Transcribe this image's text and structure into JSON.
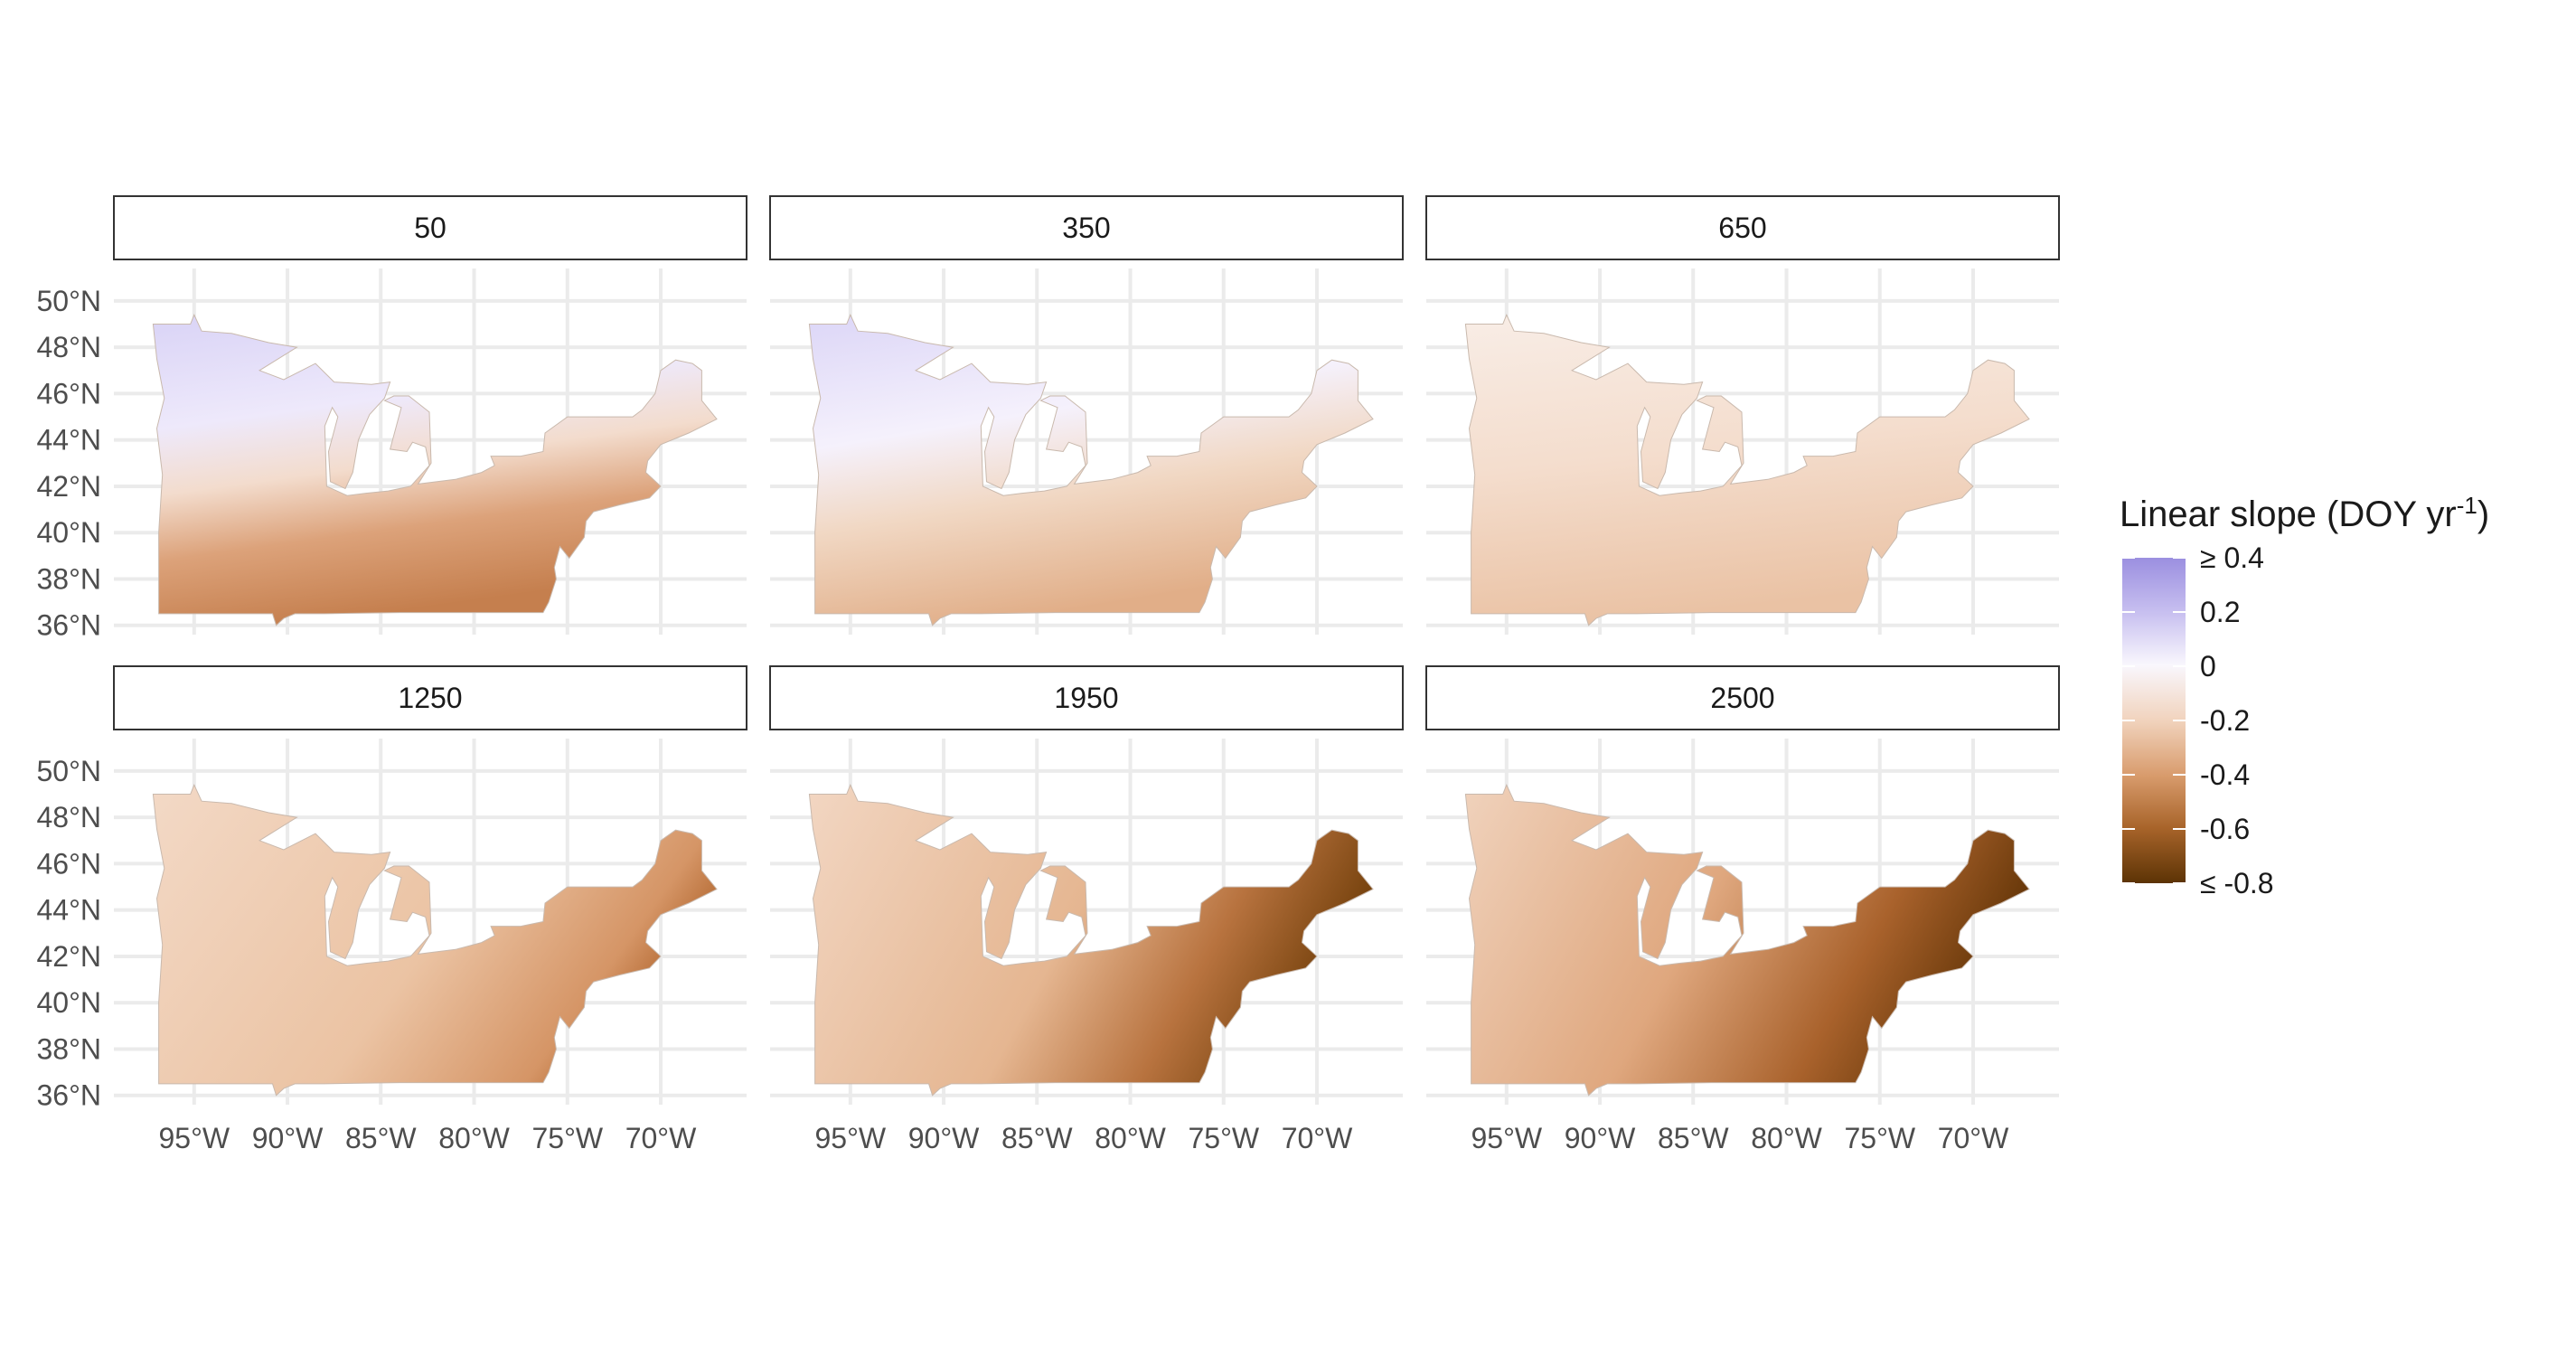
{
  "chart_data": {
    "type": "heatmap",
    "facets": [
      {
        "label": "50",
        "pattern": "d50"
      },
      {
        "label": "350",
        "pattern": "d350"
      },
      {
        "label": "650",
        "pattern": "d650"
      },
      {
        "label": "1250",
        "pattern": "d1250"
      },
      {
        "label": "1950",
        "pattern": "d1950"
      },
      {
        "label": "2500",
        "pattern": "d2500"
      }
    ],
    "x_ticks": [
      "95°W",
      "90°W",
      "85°W",
      "80°W",
      "75°W",
      "70°W"
    ],
    "x_tick_values": [
      -95,
      -90,
      -85,
      -80,
      -75,
      -70
    ],
    "y_ticks": [
      "50°N",
      "48°N",
      "46°N",
      "44°N",
      "42°N",
      "40°N",
      "38°N",
      "36°N"
    ],
    "y_tick_values": [
      50,
      48,
      46,
      44,
      42,
      40,
      38,
      36
    ],
    "xlim": [
      -99.3,
      -65.4
    ],
    "ylim": [
      35.6,
      51.4
    ],
    "grid": true,
    "legend": {
      "title": "Linear slope (DOY yr",
      "title_superscript": "-1",
      "title_suffix": ")",
      "labels": [
        "≥ 0.4",
        "0.2",
        "0",
        "-0.2",
        "-0.4",
        "-0.6",
        "≤ -0.8"
      ],
      "values": [
        0.4,
        0.2,
        0,
        -0.2,
        -0.4,
        -0.6,
        -0.8
      ],
      "range": [
        -0.8,
        0.4
      ],
      "position": "right"
    },
    "colors": {
      "high": "#9b8fe0",
      "mid": "#f8f5fd",
      "low": "#5c3305",
      "grid": "#ebebeb",
      "strip_border": "#333333"
    }
  }
}
